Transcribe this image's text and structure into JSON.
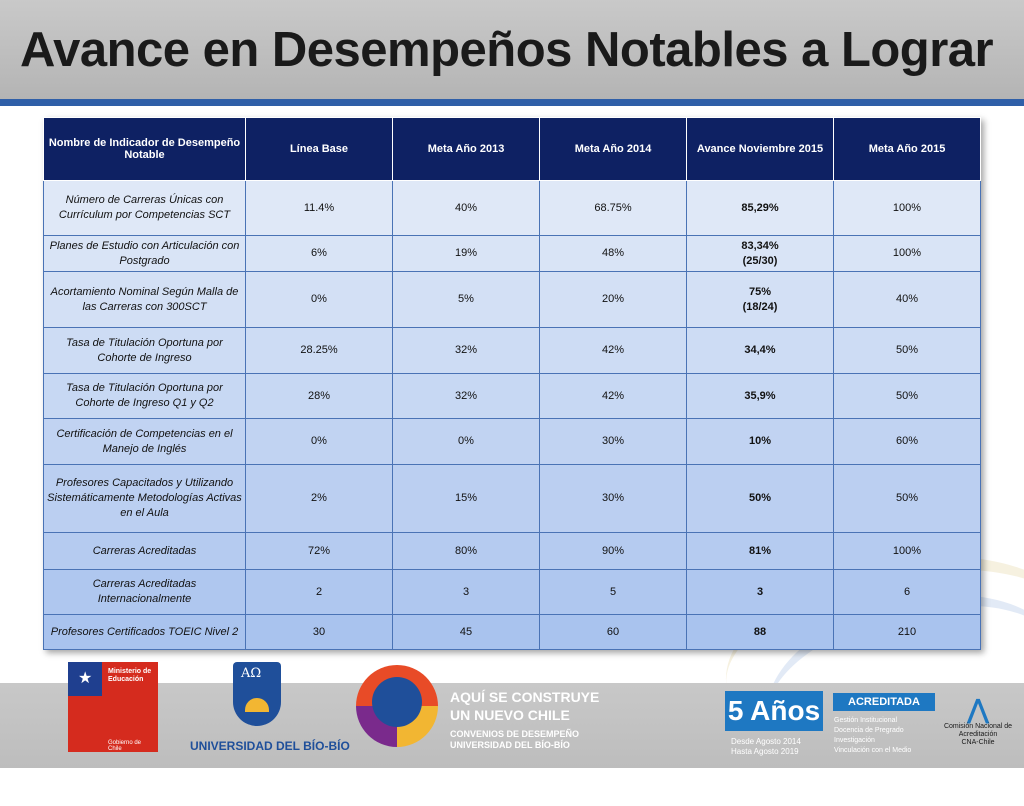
{
  "title": "Avance en Desempeños Notables a Lograr",
  "table": {
    "headers": [
      "Nombre de Indicador de Desempeño Notable",
      "Línea Base",
      "Meta Año 2013",
      "Meta Año 2014",
      "Avance Noviembre 2015",
      "Meta Año 2015"
    ],
    "rows": [
      {
        "name": "Número de Carreras Únicas con Currículum por Competencias SCT",
        "base": "11.4%",
        "m2013": "40%",
        "m2014": "68.75%",
        "avance": "85,29%",
        "m2015": "100%"
      },
      {
        "name": "Planes de Estudio con Articulación con Postgrado",
        "base": "6%",
        "m2013": "19%",
        "m2014": "48%",
        "avance": "83,34%\n(25/30)",
        "m2015": "100%"
      },
      {
        "name": "Acortamiento Nominal Según Malla de las Carreras con 300SCT",
        "base": "0%",
        "m2013": "5%",
        "m2014": "20%",
        "avance": "75%\n(18/24)",
        "m2015": "40%"
      },
      {
        "name": "Tasa de Titulación Oportuna por Cohorte de Ingreso",
        "base": "28.25%",
        "m2013": "32%",
        "m2014": "42%",
        "avance": "34,4%",
        "m2015": "50%"
      },
      {
        "name": "Tasa de Titulación Oportuna por Cohorte de Ingreso Q1 y Q2",
        "base": "28%",
        "m2013": "32%",
        "m2014": "42%",
        "avance": "35,9%",
        "m2015": "50%"
      },
      {
        "name": "Certificación de Competencias en el Manejo de Inglés",
        "base": "0%",
        "m2013": "0%",
        "m2014": "30%",
        "avance": "10%",
        "m2015": "60%"
      },
      {
        "name": "Profesores Capacitados y Utilizando Sistemáticamente Metodologías Activas en el Aula",
        "base": "2%",
        "m2013": "15%",
        "m2014": "30%",
        "avance": "50%",
        "m2015": "50%"
      },
      {
        "name": "Carreras Acreditadas",
        "base": "72%",
        "m2013": "80%",
        "m2014": "90%",
        "avance": "81%",
        "m2015": "100%"
      },
      {
        "name": "Carreras Acreditadas Internacionalmente",
        "base": "2",
        "m2013": "3",
        "m2014": "5",
        "avance": "3",
        "m2015": "6"
      },
      {
        "name": "Profesores Certificados TOEIC Nivel 2",
        "base": "30",
        "m2013": "45",
        "m2014": "60",
        "avance": "88",
        "m2015": "210"
      }
    ]
  },
  "footer": {
    "ministerio": "Ministerio de Educación",
    "gobierno": "Gobierno de Chile",
    "ubb_mark": "AΩ",
    "ubb": "UNIVERSIDAD DEL BÍO-BÍO",
    "aqui_line1": "AQUÍ SE CONSTRUYE",
    "aqui_line2": "UN NUEVO CHILE",
    "convenios_line1": "CONVENIOS DE DESEMPEÑO",
    "convenios_line2": "UNIVERSIDAD DEL BÍO-BÍO",
    "cinco_anos": "5 Años",
    "desde": "Desde Agosto 2014",
    "hasta": "Hasta Agosto 2019",
    "acreditada": "ACREDITADA",
    "areas": [
      "Gestión Institucional",
      "Docencia de Pregrado",
      "Investigación",
      "Vinculación con el Medio"
    ],
    "cna_name": "Comisión Nacional de Acreditación",
    "cna_short": "CNA-Chile"
  },
  "colors": {
    "header_bg": "#0e2163",
    "accent_line": "#2f5fa8",
    "row_light": "#dfe8f7",
    "row_dark": "#a9c3ee"
  }
}
